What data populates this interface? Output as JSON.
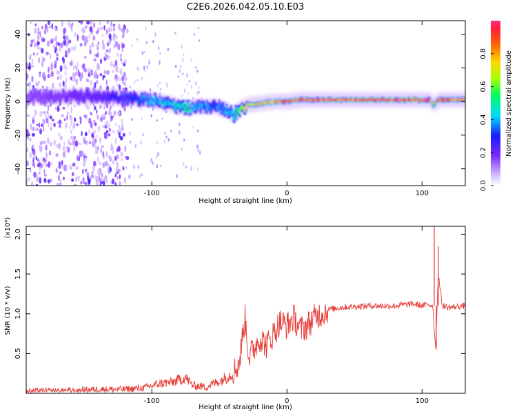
{
  "title": "C2E6.2026.042.05.10.E03",
  "chart_data": [
    {
      "type": "heatmap",
      "title": "C2E6.2026.042.05.10.E03",
      "xlabel": "Height of straight line (km)",
      "ylabel": "Frequency (Hz)",
      "xlim": [
        -193,
        132
      ],
      "ylim": [
        -50,
        48
      ],
      "xticks": [
        -100,
        0,
        100
      ],
      "yticks": [
        -40,
        -20,
        0,
        20,
        40
      ],
      "xtick_labels": [
        "-100",
        "0",
        "100"
      ],
      "ytick_labels": [
        "-40",
        "-20",
        "0",
        "20",
        "40"
      ],
      "colorbar": {
        "label": "Normalized spectral amplitude",
        "range": [
          0,
          1
        ],
        "ticks": [
          0.0,
          0.2,
          0.4,
          0.6,
          0.8
        ],
        "tick_labels": [
          "0.0",
          "0.2",
          "0.4",
          "0.6",
          "0.8"
        ]
      },
      "ridge": {
        "description": "dominant frequency trace",
        "x": [
          -193,
          -150,
          -120,
          -100,
          -85,
          -75,
          -65,
          -55,
          -45,
          -40,
          -35,
          -30,
          -20,
          -10,
          0,
          10,
          30,
          60,
          90,
          105,
          108,
          112,
          132
        ],
        "y": [
          3,
          3,
          2,
          1,
          -2,
          -4,
          -3,
          -3,
          -5,
          -8,
          -4,
          -2,
          -1,
          0,
          0,
          1,
          1,
          1,
          1,
          1,
          -2,
          1,
          1
        ],
        "amplitude": [
          0.15,
          0.2,
          0.3,
          0.4,
          0.45,
          0.5,
          0.4,
          0.35,
          0.4,
          0.45,
          0.6,
          0.7,
          0.8,
          0.85,
          0.9,
          0.9,
          0.85,
          0.9,
          0.95,
          0.9,
          0.6,
          0.9,
          0.85
        ]
      }
    },
    {
      "type": "line",
      "xlabel": "Height of straight line (km)",
      "ylabel": "SNR (10 * v/v)",
      "y_multiplier": "(x10⁴)",
      "xlim": [
        -193,
        132
      ],
      "ylim": [
        0,
        2.1
      ],
      "xticks": [
        -100,
        0,
        100
      ],
      "yticks": [
        0.5,
        1.0,
        1.5,
        2.0
      ],
      "xtick_labels": [
        "-100",
        "0",
        "100"
      ],
      "ytick_labels": [
        "0.5",
        "1.0",
        "1.5",
        "2.0"
      ],
      "color": "#e53935",
      "series": [
        {
          "name": "SNR",
          "x": [
            -193,
            -170,
            -140,
            -120,
            -105,
            -95,
            -85,
            -78,
            -75,
            -70,
            -60,
            -55,
            -50,
            -45,
            -40,
            -35,
            -33,
            -31,
            -28,
            -25,
            -20,
            -15,
            -10,
            -5,
            0,
            5,
            10,
            15,
            20,
            30,
            40,
            60,
            80,
            90,
            95,
            100,
            105,
            108,
            110,
            112,
            115,
            120,
            132
          ],
          "y": [
            0.03,
            0.03,
            0.05,
            0.05,
            0.07,
            0.12,
            0.14,
            0.18,
            0.2,
            0.1,
            0.08,
            0.12,
            0.15,
            0.2,
            0.25,
            0.4,
            0.7,
            0.95,
            0.45,
            0.55,
            0.7,
            0.6,
            0.75,
            0.9,
            0.85,
            0.95,
            0.8,
            0.85,
            0.95,
            1.05,
            1.08,
            1.1,
            1.1,
            1.12,
            1.12,
            1.1,
            1.12,
            1.1,
            0.55,
            1.5,
            1.1,
            1.08,
            1.1
          ]
        }
      ],
      "spikes": [
        {
          "x": 109,
          "y": 2.1
        },
        {
          "x": 110.5,
          "y": 0.55
        },
        {
          "x": 112,
          "y": 1.85
        }
      ]
    }
  ]
}
